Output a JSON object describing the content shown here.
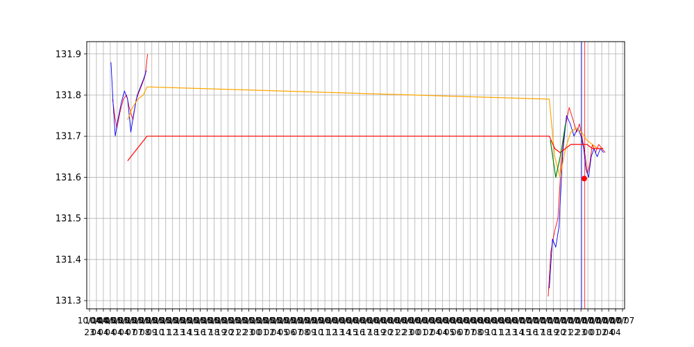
{
  "chart_data": {
    "type": "line",
    "title": "",
    "xlabel": "",
    "ylabel": "",
    "grid": true,
    "ylim": [
      131.28,
      131.93
    ],
    "yticks": [
      131.3,
      131.4,
      131.5,
      131.6,
      131.7,
      131.8,
      131.9
    ],
    "ytick_labels": [
      "131.3",
      "131.4",
      "131.5",
      "131.6",
      "131.7",
      "131.8",
      "131.9"
    ],
    "xlim": [
      0,
      100
    ],
    "xtick_labels_row1": [
      "10/04",
      "10/04",
      "10/05",
      "10/05",
      "10/05",
      "10/05",
      "10/05",
      "10/05",
      "10/05",
      "10/05",
      "10/05",
      "10/05",
      "10/05",
      "10/05",
      "10/05",
      "10/05",
      "10/05",
      "10/05",
      "10/05",
      "10/05",
      "10/05",
      "10/05",
      "10/05",
      "10/05",
      "10/05",
      "10/05",
      "10/05",
      "10/05",
      "10/05",
      "10/05",
      "10/05",
      "10/05",
      "10/05",
      "10/06",
      "10/06",
      "10/06",
      "10/06",
      "10/06",
      "10/06",
      "10/06",
      "10/06",
      "10/06",
      "10/06",
      "10/06",
      "10/06",
      "10/06",
      "10/06",
      "10/06",
      "10/06",
      "10/06",
      "10/06",
      "10/06",
      "10/06",
      "10/06",
      "10/06",
      "10/06",
      "10/06",
      "10/06",
      "10/06",
      "10/06",
      "10/06",
      "10/07",
      "10/07",
      "10/07",
      "10/07",
      "10/07",
      "10/07",
      "10/07",
      "10/07",
      "10/07",
      "10/07",
      "10/07",
      "10/07",
      "10/07",
      "10/07",
      "10/07",
      "10/07",
      "10/07"
    ],
    "xtick_labels_row2": [
      "23",
      "04",
      "04",
      "04",
      "04",
      "04",
      "07",
      "07",
      "08",
      "09",
      "10",
      "11",
      "12",
      "13",
      "14",
      "15",
      "16",
      "17",
      "18",
      "19",
      "20",
      "21",
      "22",
      "23",
      "00",
      "01",
      "02",
      "04",
      "05",
      "06",
      "07",
      "08",
      "09",
      "10",
      "11",
      "12",
      "13",
      "14",
      "15",
      "16",
      "17",
      "18",
      "19",
      "20",
      "21",
      "22",
      "23",
      "00",
      "01",
      "02",
      "04",
      "04",
      "05",
      "06",
      "07",
      "07",
      "08",
      "09",
      "10",
      "11",
      "12",
      "13",
      "14",
      "15",
      "16",
      "17",
      "18",
      "19",
      "20",
      "21",
      "22",
      "23",
      "00",
      "01",
      "02",
      "04",
      "04"
    ],
    "series": [
      {
        "role": "price-up",
        "color": "#ff0000",
        "x": [
          4.8,
          5.2,
          5.6,
          6.2,
          6.8,
          7.4,
          7.9,
          8.6,
          9.2,
          9.8,
          10.4,
          10.9,
          11.3,
          85.8,
          86.3,
          87.0,
          87.6,
          88.2,
          88.9,
          89.7,
          90.4,
          91.1,
          91.6,
          92.2,
          92.6,
          93.1,
          93.5,
          94.0,
          94.6,
          95.2,
          95.8,
          96.4
        ],
        "y": [
          131.79,
          131.75,
          131.72,
          131.76,
          131.79,
          131.8,
          131.77,
          131.74,
          131.79,
          131.81,
          131.83,
          131.85,
          131.9,
          131.31,
          131.42,
          131.47,
          131.5,
          131.63,
          131.72,
          131.77,
          131.74,
          131.71,
          131.73,
          131.69,
          131.66,
          131.61,
          131.63,
          131.68,
          131.66,
          131.68,
          131.67,
          131.66
        ]
      },
      {
        "role": "price-down",
        "color": "#0000ff",
        "x": [
          4.5,
          4.9,
          5.3,
          5.8,
          6.4,
          7.0,
          7.6,
          8.2,
          8.8,
          9.4,
          10.0,
          10.6,
          11.1,
          86.0,
          86.6,
          87.2,
          87.8,
          88.5,
          89.2,
          89.9,
          90.6,
          91.3,
          91.9,
          92.4,
          92.8,
          93.3,
          93.8,
          94.3,
          94.9,
          95.5,
          96.1
        ],
        "y": [
          131.88,
          131.78,
          131.7,
          131.74,
          131.78,
          131.81,
          131.79,
          131.71,
          131.76,
          131.8,
          131.82,
          131.84,
          131.86,
          131.33,
          131.45,
          131.43,
          131.48,
          131.66,
          131.75,
          131.73,
          131.7,
          131.72,
          131.7,
          131.67,
          131.62,
          131.6,
          131.65,
          131.67,
          131.65,
          131.67,
          131.66
        ]
      },
      {
        "role": "fast-average",
        "color": "#ffa500",
        "x": [
          7.6,
          8.5,
          9.5,
          10.5,
          11.2,
          86.0,
          87.0,
          88.0,
          89.0,
          90.0,
          91.0,
          92.0,
          93.0,
          94.0,
          95.0,
          96.0
        ],
        "y": [
          131.74,
          131.77,
          131.79,
          131.8,
          131.82,
          131.79,
          131.65,
          131.6,
          131.67,
          131.71,
          131.72,
          131.71,
          131.69,
          131.68,
          131.67,
          131.67
        ]
      },
      {
        "role": "slow-average",
        "color": "#ff0000",
        "x": [
          7.6,
          11.2,
          86.0,
          87.0,
          88.0,
          89.0,
          90.0,
          91.0,
          92.0,
          93.0,
          94.0,
          95.0,
          96.0
        ],
        "y": [
          131.64,
          131.7,
          131.7,
          131.67,
          131.66,
          131.67,
          131.68,
          131.68,
          131.68,
          131.68,
          131.67,
          131.67,
          131.67
        ]
      },
      {
        "role": "short-average",
        "color": "#008000",
        "x": [
          86.2,
          87.2,
          88.2,
          89.0
        ],
        "y": [
          131.69,
          131.6,
          131.66,
          131.73
        ]
      }
    ],
    "vertical_lines": [
      {
        "x": 92.0,
        "color": "#0000ff"
      },
      {
        "x": 92.6,
        "color": "#ff0000"
      }
    ],
    "markers": [
      {
        "x": 92.5,
        "y": 131.597,
        "color": "#ff0000"
      }
    ]
  }
}
